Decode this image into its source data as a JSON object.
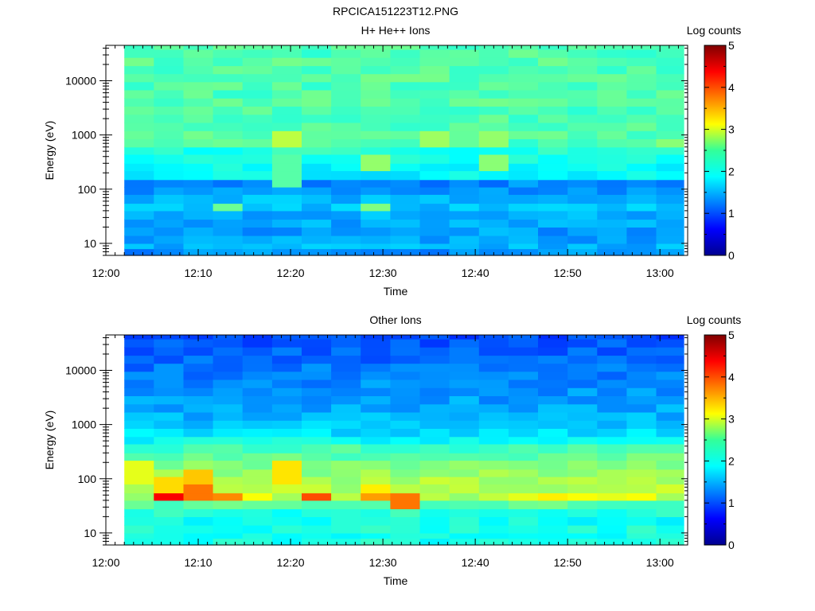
{
  "figure": {
    "title": "RPCICA151223T12.PNG"
  },
  "colorbar": {
    "label": "Log counts",
    "range": [
      0,
      5
    ],
    "ticks": [
      "0",
      "1",
      "2",
      "3",
      "4",
      "5"
    ],
    "colormap": "jet"
  },
  "chart_data": [
    {
      "type": "heatmap",
      "title": "H+ He++ Ions",
      "xlabel": "Time",
      "ylabel": "Energy (eV)",
      "y_scale": "log",
      "xlim": [
        "12:00",
        "13:03"
      ],
      "ylim": [
        6,
        45000
      ],
      "x_ticks": [
        "12:00",
        "12:10",
        "12:20",
        "12:30",
        "12:40",
        "12:50",
        "13:00"
      ],
      "y_ticks": [
        "10",
        "100",
        "1000",
        "10000"
      ],
      "data_start": "12:02",
      "time_bins_min": 3.2,
      "energy_bands_eV": [
        6,
        8,
        10,
        14,
        20,
        28,
        40,
        55,
        80,
        110,
        150,
        220,
        300,
        440,
        600,
        850,
        1200,
        1700,
        2400,
        3400,
        4800,
        6800,
        9600,
        13500,
        19000,
        27000,
        38000,
        45000
      ],
      "band_levels": [
        1.35,
        1.5,
        1.45,
        1.4,
        1.45,
        1.5,
        1.55,
        1.5,
        1.35,
        1.3,
        1.85,
        1.9,
        2.0,
        2.05,
        2.25,
        2.3,
        2.25,
        2.25,
        2.25,
        2.3,
        2.25,
        2.25,
        2.3,
        2.25,
        2.3,
        2.25,
        2.3
      ],
      "hotspots": [
        {
          "t": 3,
          "e_min": 35,
          "e_max": 60,
          "level": 2.4
        },
        {
          "t": 5,
          "e_min": 550,
          "e_max": 1300,
          "level": 2.8
        },
        {
          "t": 5,
          "e_min": 110,
          "e_max": 400,
          "level": 2.3
        },
        {
          "t": 8,
          "e_min": 35,
          "e_max": 60,
          "level": 2.5
        },
        {
          "t": 8,
          "e_min": 200,
          "e_max": 500,
          "level": 2.6
        },
        {
          "t": 10,
          "e_min": 700,
          "e_max": 1200,
          "level": 2.65
        },
        {
          "t": 12,
          "e_min": 250,
          "e_max": 500,
          "level": 2.55
        },
        {
          "t": 12,
          "e_min": 700,
          "e_max": 1100,
          "level": 2.6
        },
        {
          "t": 18,
          "e_min": 600,
          "e_max": 900,
          "level": 2.55
        }
      ]
    },
    {
      "type": "heatmap",
      "title": "Other Ions",
      "xlabel": "Time",
      "ylabel": "Energy (eV)",
      "y_scale": "log",
      "xlim": [
        "12:00",
        "13:03"
      ],
      "ylim": [
        6,
        45000
      ],
      "x_ticks": [
        "12:00",
        "12:10",
        "12:20",
        "12:30",
        "12:40",
        "12:50",
        "13:00"
      ],
      "y_ticks": [
        "10",
        "100",
        "1000",
        "10000"
      ],
      "data_start": "12:02",
      "time_bins_min": 3.2,
      "energy_bands_eV": [
        6,
        8,
        10,
        14,
        20,
        28,
        40,
        55,
        80,
        110,
        150,
        220,
        300,
        440,
        600,
        850,
        1200,
        1700,
        2400,
        3400,
        4800,
        6800,
        9600,
        13500,
        19000,
        27000,
        38000,
        45000
      ],
      "band_levels": [
        2.0,
        2.0,
        2.0,
        1.95,
        2.05,
        2.3,
        2.7,
        2.75,
        2.7,
        2.6,
        2.5,
        2.35,
        2.2,
        1.9,
        1.7,
        1.6,
        1.5,
        1.45,
        1.4,
        1.35,
        1.3,
        1.25,
        1.2,
        1.15,
        1.1,
        1.05,
        1.0
      ],
      "hotspots": [
        {
          "t": 0,
          "e_min": 80,
          "e_max": 250,
          "level": 3.0
        },
        {
          "t": 1,
          "e_min": 38,
          "e_max": 60,
          "level": 4.4
        },
        {
          "t": 1,
          "e_min": 60,
          "e_max": 110,
          "level": 3.3
        },
        {
          "t": 2,
          "e_min": 40,
          "e_max": 80,
          "level": 3.8
        },
        {
          "t": 2,
          "e_min": 80,
          "e_max": 150,
          "level": 3.4
        },
        {
          "t": 3,
          "e_min": 35,
          "e_max": 60,
          "level": 3.7
        },
        {
          "t": 4,
          "e_min": 35,
          "e_max": 60,
          "level": 3.1
        },
        {
          "t": 5,
          "e_min": 80,
          "e_max": 220,
          "level": 3.25
        },
        {
          "t": 6,
          "e_min": 35,
          "e_max": 60,
          "level": 4.0
        },
        {
          "t": 8,
          "e_min": 38,
          "e_max": 55,
          "level": 3.6
        },
        {
          "t": 8,
          "e_min": 55,
          "e_max": 80,
          "level": 3.2
        },
        {
          "t": 9,
          "e_min": 30,
          "e_max": 55,
          "level": 3.8
        },
        {
          "t": 13,
          "e_min": 35,
          "e_max": 60,
          "level": 3.0
        },
        {
          "t": 14,
          "e_min": 35,
          "e_max": 55,
          "level": 3.2
        },
        {
          "t": 15,
          "e_min": 35,
          "e_max": 55,
          "level": 3.1
        },
        {
          "t": 16,
          "e_min": 35,
          "e_max": 60,
          "level": 3.0
        },
        {
          "t": 17,
          "e_min": 35,
          "e_max": 55,
          "level": 3.1
        }
      ]
    }
  ]
}
